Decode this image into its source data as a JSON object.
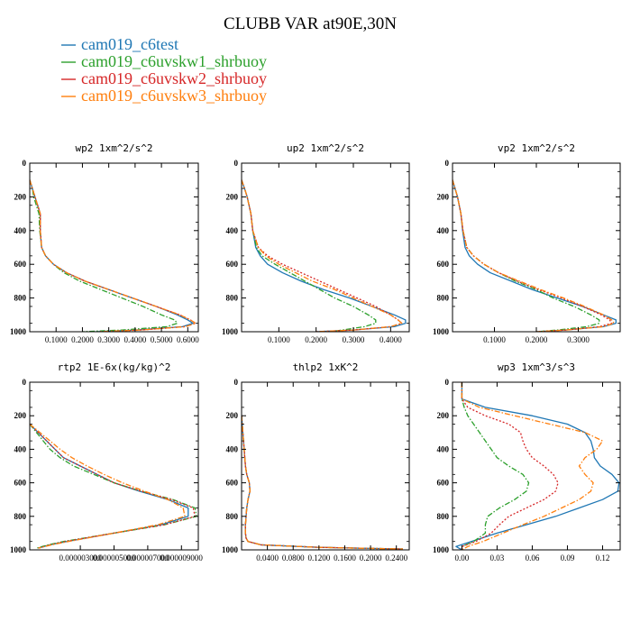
{
  "figure": {
    "title": "CLUBB VAR at90E,30N",
    "legend": [
      {
        "label": "cam019_c6test",
        "color": "#1f77b4",
        "dash": "solid"
      },
      {
        "label": "cam019_c6uvskw1_shrbuoy",
        "color": "#2ca02c",
        "dash": "dashdot"
      },
      {
        "label": "cam019_c6uvskw2_shrbuoy",
        "color": "#d62728",
        "dash": "dotted"
      },
      {
        "label": "cam019_c6uvskw3_shrbuoy",
        "color": "#ff7f0e",
        "dash": "dashdot"
      }
    ]
  },
  "chart_data": [
    {
      "type": "line",
      "title": "wp2  1xm^2/s^2",
      "xlim": [
        0,
        0.64
      ],
      "ylim": [
        1000,
        0
      ],
      "xticks": [
        0.1,
        0.2,
        0.3,
        0.4,
        0.5,
        0.6
      ],
      "xticklabels": [
        "0.1000",
        "0.2000",
        "0.3000",
        "0.4000",
        "0.5000",
        "0.6000"
      ],
      "yticks": [
        0,
        200,
        400,
        600,
        800,
        1000
      ],
      "yticklabels": [
        "0",
        "200",
        "400",
        "600",
        "800",
        "1000"
      ],
      "y": [
        100,
        150,
        200,
        250,
        300,
        400,
        500,
        550,
        600,
        650,
        700,
        750,
        800,
        850,
        900,
        930,
        950,
        970,
        990,
        1000
      ],
      "series": [
        {
          "values": [
            0.0,
            0.01,
            0.02,
            0.03,
            0.04,
            0.04,
            0.045,
            0.06,
            0.09,
            0.14,
            0.21,
            0.3,
            0.39,
            0.48,
            0.56,
            0.6,
            0.62,
            0.58,
            0.4,
            0.25
          ]
        },
        {
          "values": [
            0.0,
            0.01,
            0.015,
            0.025,
            0.035,
            0.038,
            0.045,
            0.06,
            0.09,
            0.13,
            0.19,
            0.27,
            0.35,
            0.43,
            0.5,
            0.55,
            0.56,
            0.52,
            0.35,
            0.2
          ]
        },
        {
          "values": [
            0.0,
            0.01,
            0.02,
            0.03,
            0.04,
            0.04,
            0.045,
            0.06,
            0.09,
            0.14,
            0.21,
            0.3,
            0.39,
            0.48,
            0.57,
            0.61,
            0.63,
            0.59,
            0.42,
            0.26
          ]
        },
        {
          "values": [
            0.0,
            0.01,
            0.02,
            0.03,
            0.04,
            0.04,
            0.045,
            0.06,
            0.09,
            0.14,
            0.21,
            0.3,
            0.39,
            0.48,
            0.57,
            0.61,
            0.63,
            0.59,
            0.42,
            0.26
          ]
        }
      ]
    },
    {
      "type": "line",
      "title": "up2  1xm^2/s^2",
      "xlim": [
        0,
        0.45
      ],
      "ylim": [
        1000,
        0
      ],
      "xticks": [
        0.1,
        0.2,
        0.3,
        0.4
      ],
      "xticklabels": [
        "0.1000",
        "0.2000",
        "0.3000",
        "0.4000"
      ],
      "yticks": [
        0,
        200,
        400,
        600,
        800,
        1000
      ],
      "yticklabels": [
        "0",
        "200",
        "400",
        "600",
        "800",
        "1000"
      ],
      "y": [
        100,
        150,
        200,
        250,
        300,
        400,
        500,
        550,
        600,
        650,
        700,
        750,
        800,
        850,
        900,
        930,
        950,
        970,
        990,
        1000
      ],
      "series": [
        {
          "values": [
            0.0,
            0.008,
            0.015,
            0.02,
            0.025,
            0.03,
            0.038,
            0.05,
            0.07,
            0.11,
            0.16,
            0.22,
            0.29,
            0.35,
            0.41,
            0.44,
            0.44,
            0.41,
            0.3,
            0.2
          ]
        },
        {
          "values": [
            0.0,
            0.008,
            0.015,
            0.02,
            0.025,
            0.03,
            0.04,
            0.055,
            0.09,
            0.13,
            0.17,
            0.21,
            0.25,
            0.3,
            0.34,
            0.36,
            0.36,
            0.33,
            0.27,
            0.24
          ]
        },
        {
          "values": [
            0.0,
            0.008,
            0.015,
            0.02,
            0.025,
            0.03,
            0.045,
            0.07,
            0.11,
            0.16,
            0.21,
            0.26,
            0.31,
            0.36,
            0.4,
            0.42,
            0.43,
            0.4,
            0.3,
            0.2
          ]
        },
        {
          "values": [
            0.0,
            0.008,
            0.015,
            0.02,
            0.025,
            0.03,
            0.045,
            0.065,
            0.1,
            0.145,
            0.19,
            0.25,
            0.3,
            0.35,
            0.4,
            0.42,
            0.43,
            0.4,
            0.3,
            0.2
          ]
        }
      ]
    },
    {
      "type": "line",
      "title": "vp2  1xm^2/s^2",
      "xlim": [
        0,
        0.4
      ],
      "ylim": [
        1000,
        0
      ],
      "xticks": [
        0.1,
        0.2,
        0.3
      ],
      "xticklabels": [
        "0.1000",
        "0.2000",
        "0.3000"
      ],
      "yticks": [
        0,
        200,
        400,
        600,
        800,
        1000
      ],
      "yticklabels": [
        "0",
        "200",
        "400",
        "600",
        "800",
        "1000"
      ],
      "y": [
        100,
        150,
        200,
        250,
        300,
        400,
        500,
        550,
        600,
        650,
        700,
        750,
        800,
        850,
        900,
        930,
        950,
        970,
        990,
        1000
      ],
      "series": [
        {
          "values": [
            0.0,
            0.006,
            0.012,
            0.016,
            0.02,
            0.024,
            0.03,
            0.04,
            0.06,
            0.09,
            0.14,
            0.19,
            0.25,
            0.31,
            0.36,
            0.39,
            0.39,
            0.36,
            0.27,
            0.2
          ]
        },
        {
          "values": [
            0.0,
            0.006,
            0.012,
            0.016,
            0.02,
            0.025,
            0.034,
            0.05,
            0.075,
            0.11,
            0.15,
            0.2,
            0.24,
            0.29,
            0.33,
            0.35,
            0.35,
            0.32,
            0.25,
            0.2
          ]
        },
        {
          "values": [
            0.0,
            0.006,
            0.012,
            0.016,
            0.02,
            0.025,
            0.034,
            0.05,
            0.075,
            0.11,
            0.155,
            0.205,
            0.26,
            0.31,
            0.355,
            0.375,
            0.38,
            0.35,
            0.27,
            0.2
          ]
        },
        {
          "values": [
            0.0,
            0.006,
            0.012,
            0.016,
            0.02,
            0.025,
            0.034,
            0.05,
            0.075,
            0.11,
            0.16,
            0.21,
            0.265,
            0.315,
            0.36,
            0.38,
            0.385,
            0.36,
            0.27,
            0.2
          ]
        }
      ]
    },
    {
      "type": "line",
      "title": "rtp2  1E-6x(kg/kg)^2",
      "xlim": [
        0,
        1e-05
      ],
      "ylim": [
        1000,
        0
      ],
      "xticks": [
        3e-06,
        5e-06,
        7e-06,
        9e-06
      ],
      "xticklabels": [
        "0.000003000",
        "0.000005000",
        "0.000007000",
        "0.000009000"
      ],
      "yticks": [
        0,
        200,
        400,
        600,
        800,
        1000
      ],
      "yticklabels": [
        "0",
        "200",
        "400",
        "600",
        "800",
        "1000"
      ],
      "y": [
        250,
        300,
        350,
        400,
        450,
        500,
        550,
        600,
        650,
        700,
        750,
        800,
        850,
        900,
        950,
        970,
        990
      ],
      "series": [
        {
          "values": [
            0.0,
            5e-07,
            1e-06,
            1.5e-06,
            2e-06,
            3e-06,
            4e-06,
            5e-06,
            6.5e-06,
            8.2e-06,
            9.4e-06,
            9.4e-06,
            7.8e-06,
            5e-06,
            2.2e-06,
            1.2e-06,
            5e-07
          ]
        },
        {
          "values": [
            0.0,
            4e-07,
            8e-07,
            1.2e-06,
            1.8e-06,
            2.6e-06,
            3.8e-06,
            5e-06,
            6.6e-06,
            8.5e-06,
            9.8e-06,
            9.9e-06,
            8e-06,
            5e-06,
            2e-06,
            1.1e-06,
            4e-07
          ]
        },
        {
          "values": [
            0.0,
            5e-07,
            1e-06,
            1.5e-06,
            2e-06,
            3e-06,
            4e-06,
            5e-06,
            6.6e-06,
            8.4e-06,
            9.7e-06,
            9.8e-06,
            8e-06,
            5e-06,
            2.1e-06,
            1.2e-06,
            5e-07
          ]
        },
        {
          "values": [
            0.0,
            6e-07,
            1.2e-06,
            1.8e-06,
            2.5e-06,
            3.4e-06,
            4.4e-06,
            5.5e-06,
            6.8e-06,
            8.2e-06,
            9.1e-06,
            9.2e-06,
            7.6e-06,
            5e-06,
            2.3e-06,
            1.3e-06,
            5e-07
          ]
        }
      ]
    },
    {
      "type": "line",
      "title": "thlp2  1xK^2",
      "xlim": [
        0,
        0.26
      ],
      "ylim": [
        1000,
        0
      ],
      "xticks": [
        0.04,
        0.08,
        0.12,
        0.16,
        0.2,
        0.24
      ],
      "xticklabels": [
        "0.0400",
        "0.0800",
        "0.1200",
        "0.1600",
        "0.2000",
        "0.2400"
      ],
      "yticks": [
        0,
        200,
        400,
        600,
        800,
        1000
      ],
      "yticklabels": [
        "0",
        "200",
        "400",
        "600",
        "800",
        "1000"
      ],
      "y": [
        200,
        300,
        400,
        500,
        550,
        600,
        650,
        700,
        750,
        800,
        850,
        900,
        930,
        950,
        970,
        985,
        995
      ],
      "series": [
        {
          "values": [
            0.0,
            0.002,
            0.004,
            0.006,
            0.008,
            0.012,
            0.013,
            0.01,
            0.008,
            0.007,
            0.006,
            0.006,
            0.007,
            0.01,
            0.03,
            0.12,
            0.25
          ]
        },
        {
          "values": [
            0.0,
            0.002,
            0.004,
            0.006,
            0.008,
            0.012,
            0.013,
            0.01,
            0.008,
            0.007,
            0.006,
            0.006,
            0.007,
            0.01,
            0.03,
            0.12,
            0.25
          ]
        },
        {
          "values": [
            0.0,
            0.002,
            0.004,
            0.006,
            0.008,
            0.012,
            0.013,
            0.01,
            0.008,
            0.007,
            0.006,
            0.006,
            0.007,
            0.01,
            0.03,
            0.12,
            0.25
          ]
        },
        {
          "values": [
            0.0,
            0.002,
            0.004,
            0.006,
            0.008,
            0.012,
            0.013,
            0.01,
            0.008,
            0.007,
            0.006,
            0.006,
            0.007,
            0.01,
            0.03,
            0.12,
            0.25
          ]
        }
      ]
    },
    {
      "type": "line",
      "title": "wp3  1xm^3/s^3",
      "xlim": [
        -0.008,
        0.135
      ],
      "ylim": [
        1000,
        0
      ],
      "xticks": [
        0.0,
        0.03,
        0.06,
        0.09,
        0.12
      ],
      "xticklabels": [
        "0.00",
        "0.03",
        "0.06",
        "0.09",
        "0.12"
      ],
      "yticks": [
        0,
        200,
        400,
        600,
        800,
        1000
      ],
      "yticklabels": [
        "0",
        "200",
        "400",
        "600",
        "800",
        "1000"
      ],
      "y": [
        0,
        100,
        150,
        200,
        250,
        300,
        350,
        400,
        450,
        500,
        550,
        600,
        650,
        700,
        750,
        800,
        850,
        900,
        950,
        980,
        1000
      ],
      "series": [
        {
          "values": [
            0.0,
            0.0,
            0.02,
            0.06,
            0.09,
            0.105,
            0.11,
            0.112,
            0.113,
            0.118,
            0.128,
            0.134,
            0.133,
            0.12,
            0.1,
            0.08,
            0.055,
            0.03,
            0.008,
            -0.005,
            0.0
          ]
        },
        {
          "values": [
            0.0,
            0.0,
            0.002,
            0.005,
            0.01,
            0.015,
            0.02,
            0.025,
            0.03,
            0.04,
            0.052,
            0.057,
            0.055,
            0.045,
            0.032,
            0.022,
            0.02,
            0.02,
            0.01,
            0.0,
            0.0
          ]
        },
        {
          "values": [
            0.0,
            0.0,
            0.005,
            0.02,
            0.04,
            0.05,
            0.052,
            0.055,
            0.06,
            0.07,
            0.078,
            0.082,
            0.08,
            0.07,
            0.055,
            0.04,
            0.032,
            0.025,
            0.012,
            0.0,
            0.0
          ]
        },
        {
          "values": [
            0.0,
            0.0,
            0.015,
            0.045,
            0.075,
            0.105,
            0.12,
            0.115,
            0.105,
            0.1,
            0.105,
            0.112,
            0.11,
            0.1,
            0.085,
            0.07,
            0.052,
            0.035,
            0.018,
            0.005,
            0.0
          ]
        }
      ]
    }
  ]
}
